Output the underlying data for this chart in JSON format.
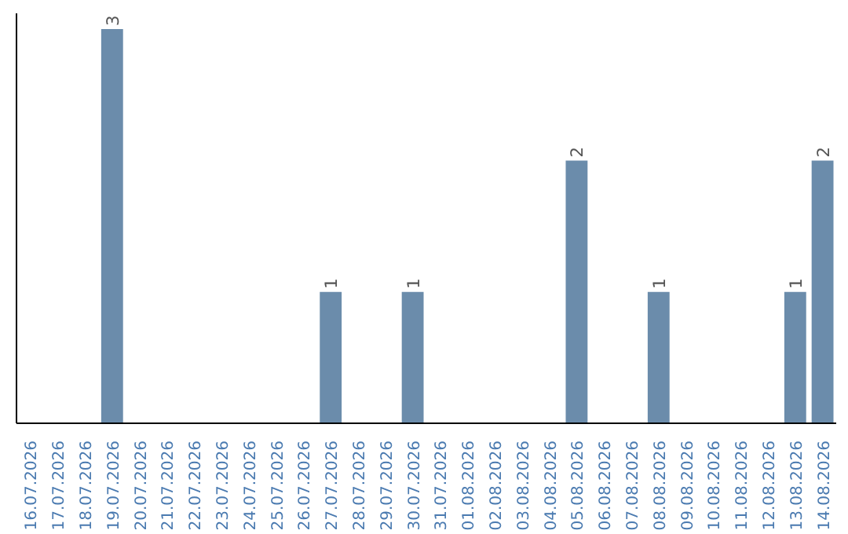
{
  "chart_data": {
    "type": "bar",
    "categories": [
      "16.07.2026",
      "17.07.2026",
      "18.07.2026",
      "19.07.2026",
      "20.07.2026",
      "21.07.2026",
      "22.07.2026",
      "23.07.2026",
      "24.07.2026",
      "25.07.2026",
      "26.07.2026",
      "27.07.2026",
      "28.07.2026",
      "29.07.2026",
      "30.07.2026",
      "31.07.2026",
      "01.08.2026",
      "02.08.2026",
      "03.08.2026",
      "04.08.2026",
      "05.08.2026",
      "06.08.2026",
      "07.08.2026",
      "08.08.2026",
      "09.08.2026",
      "10.08.2026",
      "11.08.2026",
      "12.08.2026",
      "13.08.2026",
      "14.08.2026"
    ],
    "values": [
      0,
      0,
      0,
      3,
      0,
      0,
      0,
      0,
      0,
      0,
      0,
      1,
      0,
      0,
      1,
      0,
      0,
      0,
      0,
      0,
      2,
      0,
      0,
      1,
      0,
      0,
      0,
      0,
      1,
      2
    ],
    "value_labels": [
      null,
      null,
      null,
      "3",
      null,
      null,
      null,
      null,
      null,
      null,
      null,
      "1",
      null,
      null,
      "1",
      null,
      null,
      null,
      null,
      null,
      "2",
      null,
      null,
      "1",
      null,
      null,
      null,
      null,
      "1",
      "2"
    ],
    "color": "#6b8cab",
    "grid": false,
    "tick_labels": "x"
  }
}
